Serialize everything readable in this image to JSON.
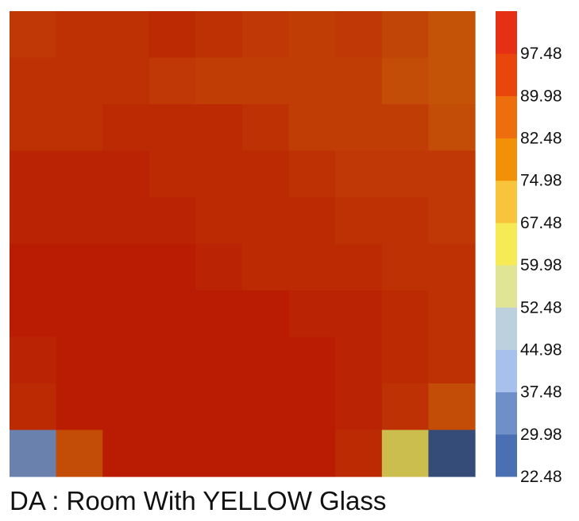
{
  "chart_data": {
    "type": "heatmap",
    "title": "DA : Room With YELLOW Glass",
    "xlabel": "",
    "ylabel": "",
    "rows": 10,
    "cols": 10,
    "grid": false,
    "legend_placement": "right",
    "values": [
      [
        94,
        95,
        95,
        96,
        95,
        94,
        93,
        94,
        92,
        90
      ],
      [
        95,
        95,
        95,
        94,
        93,
        93,
        93,
        93,
        91,
        90
      ],
      [
        95,
        95,
        96,
        96,
        96,
        95,
        93,
        93,
        93,
        91
      ],
      [
        97,
        97,
        97,
        96,
        96,
        96,
        95,
        94,
        94,
        94
      ],
      [
        97,
        97,
        97,
        97,
        96,
        96,
        96,
        95,
        95,
        94
      ],
      [
        98,
        98,
        98,
        98,
        97,
        96,
        96,
        96,
        95,
        95
      ],
      [
        98,
        98,
        98,
        98,
        98,
        98,
        97,
        97,
        96,
        95
      ],
      [
        97,
        98,
        98,
        98,
        98,
        98,
        98,
        97,
        96,
        95
      ],
      [
        96,
        98,
        98,
        98,
        98,
        98,
        98,
        97,
        95,
        91
      ],
      [
        33,
        91,
        98,
        98,
        98,
        98,
        98,
        96,
        60,
        27
      ]
    ],
    "colorbar": {
      "ticks": [
        "97.48",
        "89.98",
        "82.48",
        "74.98",
        "67.48",
        "59.98",
        "52.48",
        "44.98",
        "37.48",
        "29.98",
        "22.48"
      ],
      "min": 22.48,
      "max": 104.98,
      "colors": [
        "#4a6fb2",
        "#6f8fc8",
        "#a7c0ec",
        "#bdd0dd",
        "#e0e595",
        "#f6ea55",
        "#f8c43b",
        "#f29108",
        "#ee6e0d",
        "#e9460d",
        "#e53016"
      ]
    }
  }
}
